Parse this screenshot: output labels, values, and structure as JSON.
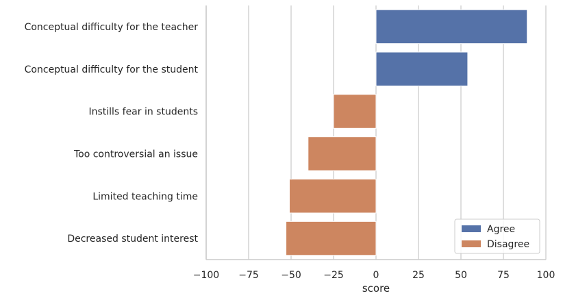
{
  "chart_data": {
    "type": "bar",
    "orientation": "horizontal",
    "categories": [
      "Conceptual difficulty for the teacher",
      "Conceptual difficulty for the student",
      "Instills fear in students",
      "Too controversial an issue",
      "Limited teaching time",
      "Decreased student interest"
    ],
    "values": [
      89,
      54,
      -25,
      -40,
      -51,
      -53
    ],
    "category_series": [
      "Agree",
      "Agree",
      "Disagree",
      "Disagree",
      "Disagree",
      "Disagree"
    ],
    "series": [
      {
        "name": "Agree",
        "color": "#5572a8"
      },
      {
        "name": "Disagree",
        "color": "#cd8660"
      }
    ],
    "xlabel": "score",
    "ylabel": "",
    "xlim": [
      -100,
      100
    ],
    "xticks": [
      -100,
      -75,
      -50,
      -25,
      0,
      25,
      50,
      75,
      100
    ],
    "xtick_labels": [
      "−100",
      "−75",
      "−50",
      "−25",
      "0",
      "25",
      "50",
      "75",
      "100"
    ],
    "grid": "vertical",
    "legend_position": "bottom-right"
  }
}
